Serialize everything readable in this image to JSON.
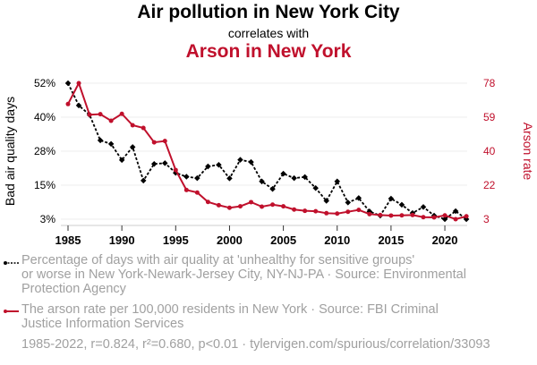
{
  "chart_data": {
    "type": "line",
    "title": "Air pollution in New York City",
    "subtitle": "correlates with",
    "title2": "Arson in New York",
    "ylabel_left": "Bad air quality days",
    "ylabel_right": "Arson rate",
    "x": [
      1985,
      1986,
      1987,
      1988,
      1989,
      1990,
      1991,
      1992,
      1993,
      1994,
      1995,
      1996,
      1997,
      1998,
      1999,
      2000,
      2001,
      2002,
      2003,
      2004,
      2005,
      2006,
      2007,
      2008,
      2009,
      2010,
      2011,
      2012,
      2013,
      2014,
      2015,
      2016,
      2017,
      2018,
      2019,
      2020,
      2021,
      2022
    ],
    "xticks": [
      "1985",
      "1990",
      "1995",
      "2000",
      "2005",
      "2010",
      "2015",
      "2020"
    ],
    "yticks_left": [
      "3%",
      "15%",
      "28%",
      "40%",
      "52%"
    ],
    "yticks_right": [
      "3",
      "22",
      "40",
      "59",
      "78"
    ],
    "ylim_left": [
      3,
      52
    ],
    "ylim_right": [
      3,
      78
    ],
    "series": [
      {
        "name": "Percentage of days with air quality at 'unhealthy for sensitive groups' or worse in New York-Newark-Jersey City, NY-NJ-PA · Source: Environmental Protection Agency",
        "axis": "left",
        "color": "#000000",
        "values": [
          52,
          44,
          40.6,
          31.4,
          30.1,
          24.3,
          29,
          16.9,
          22.9,
          23.2,
          19.7,
          18.3,
          17.8,
          22,
          22.6,
          17.7,
          24.4,
          23.6,
          16.6,
          13.9,
          19.4,
          17.8,
          18.2,
          14.2,
          9.6,
          16.6,
          9,
          10.6,
          5.8,
          4.3,
          10.4,
          8.2,
          5.2,
          7.4,
          4.3,
          3,
          5.9,
          3
        ]
      },
      {
        "name": "The arson rate per 100,000 residents in New York · Source: FBI Criminal Justice Information Services",
        "axis": "right",
        "color": "#c0102c",
        "values": [
          66.5,
          78,
          60.6,
          60.9,
          57.3,
          61.1,
          54.8,
          53.3,
          45.4,
          46.1,
          30.1,
          19.1,
          17.7,
          12.5,
          10.7,
          9.3,
          10.1,
          12.4,
          9.9,
          11,
          10.1,
          8.3,
          7.6,
          7.4,
          6.3,
          6.1,
          7.1,
          8.1,
          5.8,
          5.3,
          5,
          5.1,
          5.3,
          4.1,
          4,
          5.1,
          3,
          4.6
        ]
      }
    ],
    "legend_lines": [
      [
        "Percentage of days with air quality at 'unhealthy for sensitive groups'",
        "or worse in New York-Newark-Jersey City, NY-NJ-PA · Source: Environmental",
        "Protection Agency"
      ],
      [
        "The arson rate per 100,000 residents in New York · Source: FBI Criminal",
        "Justice Information Services"
      ]
    ],
    "footer": "1985-2022, r=0.824, r²=0.680, p<0.01 · tylervigen.com/spurious/correlation/33093"
  }
}
